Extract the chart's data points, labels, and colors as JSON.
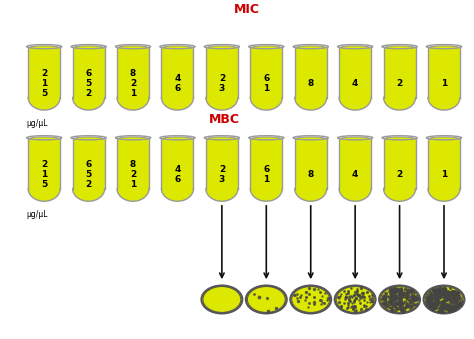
{
  "title_mic": "MIC",
  "title_mbc": "MBC",
  "title_color": "#cc0000",
  "background_color": "#ffffff",
  "tube_fill_color": "#dde800",
  "tube_outline_color": "#999999",
  "tube_top_color": "#eeeeee",
  "tube_labels": [
    [
      "5",
      "1",
      "2"
    ],
    [
      "2",
      "5",
      "6"
    ],
    [
      "1",
      "2",
      "8"
    ],
    [
      "6",
      "4",
      ""
    ],
    [
      "3",
      "2",
      ""
    ],
    [
      "1",
      "6",
      ""
    ],
    [
      "8",
      "",
      ""
    ],
    [
      "4",
      "",
      ""
    ],
    [
      "2",
      "",
      ""
    ],
    [
      "1",
      "",
      ""
    ]
  ],
  "ug_label": "μg/μL",
  "petri_positions": [
    4,
    5,
    6,
    7,
    8,
    9
  ],
  "petri_colony_counts": [
    0,
    5,
    30,
    80,
    200,
    400
  ],
  "arrow_color": "#111111",
  "petri_fill": "#dde800",
  "petri_outline": "#555555"
}
